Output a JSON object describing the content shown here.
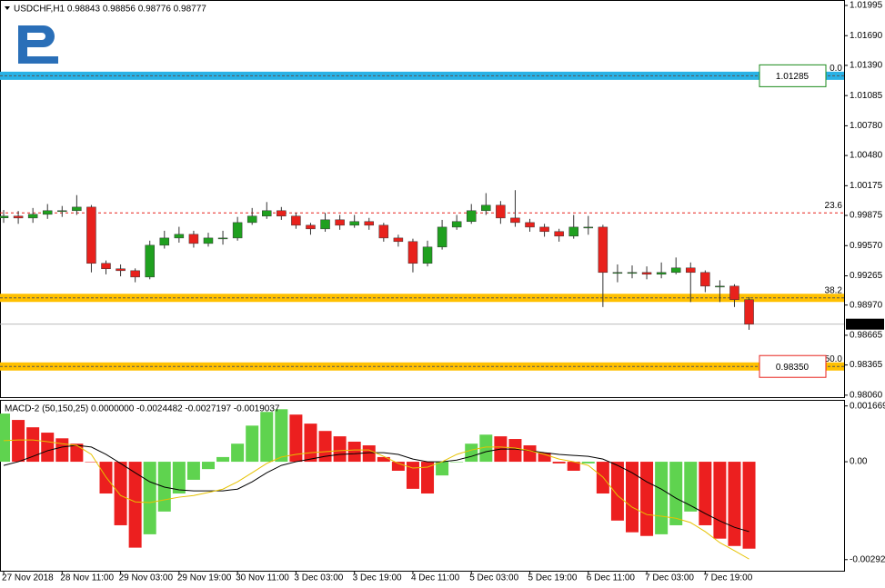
{
  "chart_data": [
    {
      "type": "candlestick",
      "title": "USDCHF,H1  0.98843 0.98856 0.98776 0.98777",
      "x": [
        0,
        4,
        8,
        12,
        16,
        20,
        24,
        28,
        32,
        36,
        40,
        44,
        48,
        52,
        56,
        60,
        64,
        68,
        72,
        76,
        80,
        84,
        88,
        92,
        96,
        100,
        104,
        108,
        112,
        116,
        120,
        124,
        128,
        132,
        136,
        140,
        144,
        148,
        152,
        156,
        160,
        164,
        168,
        172,
        176,
        180,
        184,
        188,
        192,
        196,
        200,
        204
      ],
      "open": [
        0.9985,
        0.99868,
        0.99849,
        0.99886,
        0.99923,
        0.99923,
        0.99959,
        0.99391,
        0.99336,
        0.99317,
        0.99253,
        0.99574,
        0.99647,
        0.99684,
        0.99592,
        0.99647,
        0.99647,
        0.99803,
        0.99868,
        0.99923,
        0.99868,
        0.99776,
        0.99739,
        0.99831,
        0.99776,
        0.99813,
        0.99776,
        0.99647,
        0.99611,
        0.99391,
        0.99556,
        0.99757,
        0.99813,
        0.99923,
        0.99978,
        0.99849,
        0.99803,
        0.99757,
        0.99712,
        0.99666,
        0.99757,
        0.99757,
        0.99299,
        0.99299,
        0.99299,
        0.99281,
        0.99299,
        0.99345,
        0.99299,
        0.99161,
        0.99161,
        0.99024
      ],
      "high": [
        0.9993,
        0.9992,
        0.9995,
        0.9999,
        0.9997,
        1.0008,
        0.9998,
        0.9942,
        0.9938,
        0.9934,
        0.9962,
        0.9972,
        0.9976,
        0.9972,
        0.997,
        0.9972,
        0.9986,
        0.9995,
        1.0001,
        0.9996,
        0.999,
        0.998,
        0.999,
        0.9988,
        0.9988,
        0.9985,
        0.998,
        0.9968,
        0.9964,
        0.9962,
        0.9983,
        0.9988,
        0.9999,
        1.001,
        1.0002,
        1.0013,
        0.9984,
        0.9979,
        0.9974,
        0.9988,
        0.9987,
        0.9978,
        0.9938,
        0.9937,
        0.9936,
        0.994,
        0.9945,
        0.994,
        0.9932,
        0.9922,
        0.9918,
        0.9905
      ],
      "low": [
        0.998,
        0.9979,
        0.998,
        0.9984,
        0.9986,
        0.9988,
        0.993,
        0.9928,
        0.9926,
        0.992,
        0.9923,
        0.9954,
        0.996,
        0.9955,
        0.9956,
        0.9958,
        0.9962,
        0.9978,
        0.9984,
        0.9983,
        0.9974,
        0.9968,
        0.9971,
        0.9973,
        0.9975,
        0.9973,
        0.9961,
        0.9956,
        0.993,
        0.9936,
        0.9953,
        0.9973,
        0.9979,
        0.9988,
        0.9979,
        0.9976,
        0.9971,
        0.9966,
        0.9961,
        0.9964,
        0.9968,
        0.9895,
        0.992,
        0.9924,
        0.9923,
        0.9924,
        0.9928,
        0.99,
        0.991,
        0.99,
        0.9895,
        0.9872
      ],
      "close": [
        0.99868,
        0.99849,
        0.99886,
        0.99923,
        0.99923,
        0.99959,
        0.99391,
        0.99336,
        0.99317,
        0.99253,
        0.99574,
        0.99647,
        0.99684,
        0.99592,
        0.99647,
        0.99647,
        0.99803,
        0.99868,
        0.99923,
        0.99868,
        0.99776,
        0.99739,
        0.99831,
        0.99776,
        0.99813,
        0.99776,
        0.99647,
        0.99611,
        0.99391,
        0.99556,
        0.99757,
        0.99813,
        0.99923,
        0.99978,
        0.99849,
        0.99803,
        0.99757,
        0.99712,
        0.99666,
        0.99757,
        0.99757,
        0.99299,
        0.99299,
        0.99299,
        0.99281,
        0.99299,
        0.99345,
        0.99299,
        0.99161,
        0.99161,
        0.99024,
        0.98777
      ],
      "up_color": "#1fa01f",
      "down_color": "#e8211c",
      "xlim": [
        -1,
        230
      ],
      "ylim": [
        0.9804,
        1.0205
      ],
      "yticks": [
        1.01995,
        {
          "value": 1.0169,
          "label": "1.01690"
        },
        {
          "value": 1.0139,
          "label": "1.01390"
        },
        1.01085,
        {
          "value": 1.0078,
          "label": "1.00780"
        },
        {
          "value": 1.0048,
          "label": "1.00480"
        },
        1.00175,
        0.99875,
        {
          "value": 0.9957,
          "label": "0.99570"
        },
        0.99265,
        {
          "value": 0.9897,
          "label": "0.98970"
        },
        0.98665,
        0.98365,
        {
          "value": 0.9806,
          "label": "0.98060"
        }
      ],
      "levels": [
        {
          "label": "0.0",
          "value": 1.01285,
          "style": "band",
          "color": "#29b2e6",
          "box_color": "#1b8a1b"
        },
        {
          "label": "23.6",
          "value": 0.999,
          "style": "dotted",
          "color": "#e8211c"
        },
        {
          "label": "38.2",
          "value": 0.99043,
          "style": "band",
          "color": "#ffc000"
        },
        {
          "label": "50.0",
          "value": 0.9835,
          "value_label": "0.98350",
          "style": "band",
          "color": "#ffc000",
          "box_color": "#e8211c"
        }
      ],
      "last_price": 0.98777
    },
    {
      "type": "macd",
      "title": "MACD-2 (50,150,25) 0.0000000 -0.0024482 -0.0027197 -0.0019037",
      "x": [
        0,
        4,
        8,
        12,
        16,
        20,
        24,
        28,
        32,
        36,
        40,
        44,
        48,
        52,
        56,
        60,
        64,
        68,
        72,
        76,
        80,
        84,
        88,
        92,
        96,
        100,
        104,
        108,
        112,
        116,
        120,
        124,
        128,
        132,
        136,
        140,
        144,
        148,
        152,
        156,
        160,
        164,
        168,
        172,
        176,
        180,
        184,
        188,
        192,
        196,
        200,
        204
      ],
      "histogram": {
        "values": [
          0.00144,
          0.00125,
          0.00103,
          0.00087,
          0.0007,
          0.00054,
          0,
          -0.00095,
          -0.0019,
          -0.00257,
          -0.00217,
          -0.00149,
          -0.00095,
          -0.00054,
          -0.00022,
          0.00014,
          0.00054,
          0.00108,
          0.00149,
          0.00157,
          0.00141,
          0.00114,
          0.00092,
          0.00076,
          0.0006,
          0.00049,
          0.00014,
          -0.00027,
          -0.00081,
          -0.00095,
          -0.00041,
          0,
          0.00054,
          0.00081,
          0.00076,
          0.00068,
          0.00049,
          0.00027,
          -5e-05,
          -0.00027,
          -5e-05,
          -0.00095,
          -0.00176,
          -0.00211,
          -0.00222,
          -0.00217,
          -0.0019,
          -0.00149,
          -0.0019,
          -0.0023,
          -0.00252,
          -0.0026
        ],
        "up_color": "#5fd34f",
        "down_color": "#ec1f1f"
      },
      "series": [
        {
          "color": "#000000",
          "values": [
            -0.00011,
            0,
            0.00016,
            0.00033,
            0.00044,
            0.00049,
            0.00044,
            0.00022,
            -5e-05,
            -0.00033,
            -0.0006,
            -0.00076,
            -0.00084,
            -0.00087,
            -0.00087,
            -0.00087,
            -0.00082,
            -0.0006,
            -0.00033,
            -0.00011,
            0,
            8e-05,
            0.00016,
            0.00022,
            0.00024,
            0.00027,
            0.00027,
            0.00022,
            8e-05,
            0,
            0,
            5e-05,
            0.00016,
            0.0003,
            0.00038,
            0.00038,
            0.00033,
            0.00027,
            0.00022,
            0.00019,
            0.00016,
            8e-05,
            -0.00011,
            -0.00033,
            -0.0006,
            -0.00082,
            -0.00109,
            -0.00131,
            -0.00155,
            -0.00177,
            -0.00196,
            -0.00209
          ]
        },
        {
          "color": "#e6c200",
          "values": [
            0.00063,
            0.00065,
            0.00065,
            0.0006,
            0.00054,
            0.00049,
            0.00022,
            -0.00046,
            -0.00101,
            -0.0012,
            -0.00122,
            -0.00114,
            -0.00106,
            -0.00101,
            -0.00092,
            -0.00082,
            -0.0006,
            -0.00033,
            -5e-05,
            0.00014,
            0.00022,
            0.00027,
            0.0003,
            0.00033,
            0.00035,
            0.00035,
            0.00016,
            -5e-05,
            -0.00019,
            -0.00016,
            0,
            0.00022,
            0.00035,
            0.00044,
            0.00044,
            0.00041,
            0.00033,
            0.00022,
            8e-05,
            0,
            -0.00011,
            -0.00046,
            -0.00101,
            -0.00136,
            -0.00158,
            -0.00163,
            -0.00169,
            -0.00182,
            -0.00209,
            -0.00242,
            -0.00266,
            -0.00291
          ]
        }
      ],
      "xlim": [
        -1,
        230
      ],
      "ylim": [
        -0.00326,
        0.00185
      ],
      "yticks": [
        0.001669,
        {
          "value": 0,
          "label": "0.00"
        },
        -0.002928
      ],
      "xticks": [
        {
          "value": 0,
          "label": "27 Nov 2018"
        },
        {
          "value": 16,
          "label": "28 Nov 11:00"
        },
        {
          "value": 32,
          "label": "29 Nov 03:00"
        },
        {
          "value": 48,
          "label": "29 Nov 19:00"
        },
        {
          "value": 64,
          "label": "30 Nov 11:00"
        },
        {
          "value": 80,
          "label": "3 Dec 03:00"
        },
        {
          "value": 96,
          "label": "3 Dec 19:00"
        },
        {
          "value": 112,
          "label": "4 Dec 11:00"
        },
        {
          "value": 128,
          "label": "5 Dec 03:00"
        },
        {
          "value": 144,
          "label": "5 Dec 19:00"
        },
        {
          "value": 160,
          "label": "6 Dec 11:00"
        },
        {
          "value": 176,
          "label": "7 Dec 03:00"
        },
        {
          "value": 192,
          "label": "7 Dec 19:00"
        }
      ]
    }
  ]
}
